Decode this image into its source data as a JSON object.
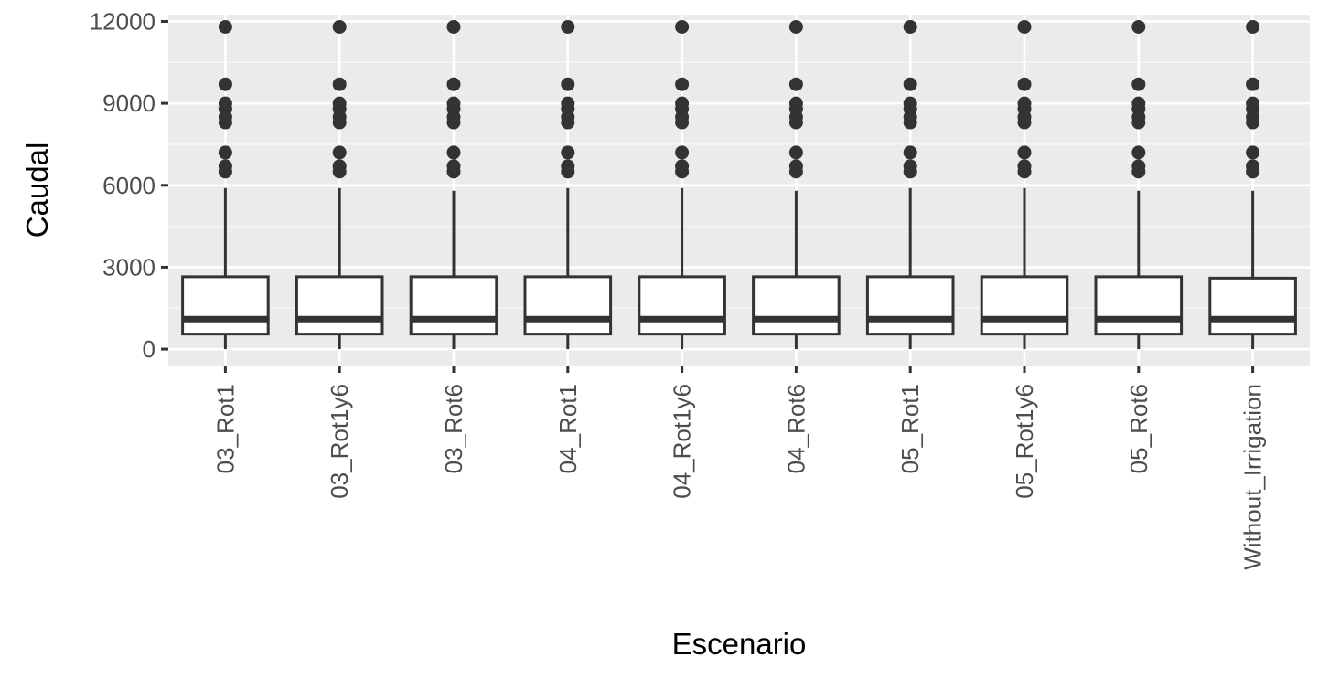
{
  "chart_data": {
    "type": "boxplot",
    "title": "",
    "xlabel": "Escenario",
    "ylabel": "Caudal",
    "ylim": [
      -600,
      12250
    ],
    "y_ticks": [
      0,
      3000,
      6000,
      9000,
      12000
    ],
    "y_tick_labels": [
      "0",
      "3000",
      "6000",
      "9000",
      "12000"
    ],
    "grid": true,
    "legend": "none",
    "categories": [
      "03_Rot1",
      "03_Rot1y6",
      "03_Rot6",
      "04_Rot1",
      "04_Rot1y6",
      "04_Rot6",
      "05_Rot1",
      "05_Rot1y6",
      "05_Rot6",
      "Without_Irrigation"
    ],
    "boxes": [
      {
        "category": "03_Rot1",
        "whisker_low": 0,
        "q1": 550,
        "median": 1100,
        "q3": 2650,
        "whisker_high": 5900,
        "outliers": [
          6500,
          6700,
          7200,
          8300,
          8500,
          8800,
          9000,
          9700,
          11800
        ]
      },
      {
        "category": "03_Rot1y6",
        "whisker_low": 0,
        "q1": 550,
        "median": 1100,
        "q3": 2650,
        "whisker_high": 5900,
        "outliers": [
          6500,
          6700,
          7200,
          8300,
          8500,
          8800,
          9000,
          9700,
          11800
        ]
      },
      {
        "category": "03_Rot6",
        "whisker_low": 0,
        "q1": 550,
        "median": 1100,
        "q3": 2650,
        "whisker_high": 5800,
        "outliers": [
          6500,
          6700,
          7200,
          8300,
          8500,
          8800,
          9000,
          9700,
          11800
        ]
      },
      {
        "category": "04_Rot1",
        "whisker_low": 0,
        "q1": 550,
        "median": 1100,
        "q3": 2650,
        "whisker_high": 5900,
        "outliers": [
          6500,
          6700,
          7200,
          8300,
          8500,
          8800,
          9000,
          9700,
          11800
        ]
      },
      {
        "category": "04_Rot1y6",
        "whisker_low": 0,
        "q1": 550,
        "median": 1100,
        "q3": 2650,
        "whisker_high": 5900,
        "outliers": [
          6500,
          6700,
          7200,
          8300,
          8500,
          8800,
          9000,
          9700,
          11800
        ]
      },
      {
        "category": "04_Rot6",
        "whisker_low": 0,
        "q1": 550,
        "median": 1100,
        "q3": 2650,
        "whisker_high": 5800,
        "outliers": [
          6500,
          6700,
          7200,
          8300,
          8500,
          8800,
          9000,
          9700,
          11800
        ]
      },
      {
        "category": "05_Rot1",
        "whisker_low": 0,
        "q1": 550,
        "median": 1100,
        "q3": 2650,
        "whisker_high": 5900,
        "outliers": [
          6500,
          6700,
          7200,
          8300,
          8500,
          8800,
          9000,
          9700,
          11800
        ]
      },
      {
        "category": "05_Rot1y6",
        "whisker_low": 0,
        "q1": 550,
        "median": 1100,
        "q3": 2650,
        "whisker_high": 5900,
        "outliers": [
          6500,
          6700,
          7200,
          8300,
          8500,
          8800,
          9000,
          9700,
          11800
        ]
      },
      {
        "category": "05_Rot6",
        "whisker_low": 0,
        "q1": 550,
        "median": 1100,
        "q3": 2650,
        "whisker_high": 5800,
        "outliers": [
          6500,
          6700,
          7200,
          8300,
          8500,
          8800,
          9000,
          9700,
          11800
        ]
      },
      {
        "category": "Without_Irrigation",
        "whisker_low": 0,
        "q1": 550,
        "median": 1100,
        "q3": 2600,
        "whisker_high": 5800,
        "outliers": [
          6500,
          6700,
          7200,
          8300,
          8500,
          8800,
          9000,
          9700,
          11800
        ]
      }
    ],
    "colors": {
      "panel_background": "#ebebeb",
      "grid_major": "#ffffff",
      "grid_minor": "#f5f5f5",
      "box_fill": "#ffffff",
      "box_line": "#333333",
      "outlier": "#333333",
      "tick_mark": "#333333",
      "tick_label": "#4d4d4d",
      "axis_title": "#000000"
    }
  }
}
